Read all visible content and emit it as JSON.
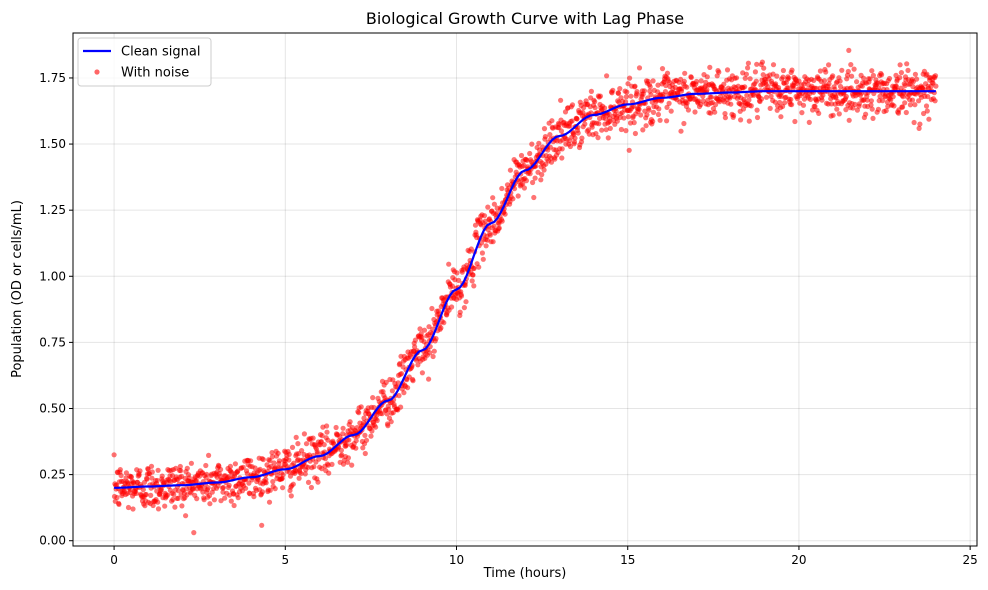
{
  "chart_data": {
    "type": "line",
    "title": "Biological Growth Curve with Lag Phase",
    "xlabel": "Time (hours)",
    "ylabel": "Population (OD or cells/mL)",
    "xlim": [
      -1.2,
      25.2
    ],
    "ylim": [
      -0.02,
      1.92
    ],
    "x_ticks": [
      0,
      5,
      10,
      15,
      20,
      25
    ],
    "x_tick_labels": [
      "0",
      "5",
      "10",
      "15",
      "20",
      "25"
    ],
    "y_ticks": [
      0.0,
      0.25,
      0.5,
      0.75,
      1.0,
      1.25,
      1.5,
      1.75
    ],
    "y_tick_labels": [
      "0.00",
      "0.25",
      "0.50",
      "0.75",
      "1.00",
      "1.25",
      "1.50",
      "1.75"
    ],
    "grid": true,
    "legend_position": "top-left",
    "colors": {
      "clean": "#0000ff",
      "noisy": "#ff0000"
    },
    "series": [
      {
        "name": "Clean signal",
        "style": "line",
        "x": [
          0,
          1,
          2,
          3,
          4,
          5,
          6,
          7,
          8,
          9,
          10,
          11,
          12,
          13,
          14,
          15,
          16,
          17,
          18,
          19,
          20,
          21,
          22,
          23,
          24
        ],
        "y": [
          0.2,
          0.205,
          0.21,
          0.22,
          0.24,
          0.27,
          0.32,
          0.4,
          0.53,
          0.72,
          0.95,
          1.2,
          1.4,
          1.53,
          1.61,
          1.65,
          1.675,
          1.69,
          1.695,
          1.7,
          1.7,
          1.7,
          1.7,
          1.7,
          1.7
        ]
      },
      {
        "name": "With noise",
        "style": "scatter",
        "x_range": [
          0,
          24
        ],
        "noise_sd": 0.045,
        "count": 2000
      }
    ]
  }
}
